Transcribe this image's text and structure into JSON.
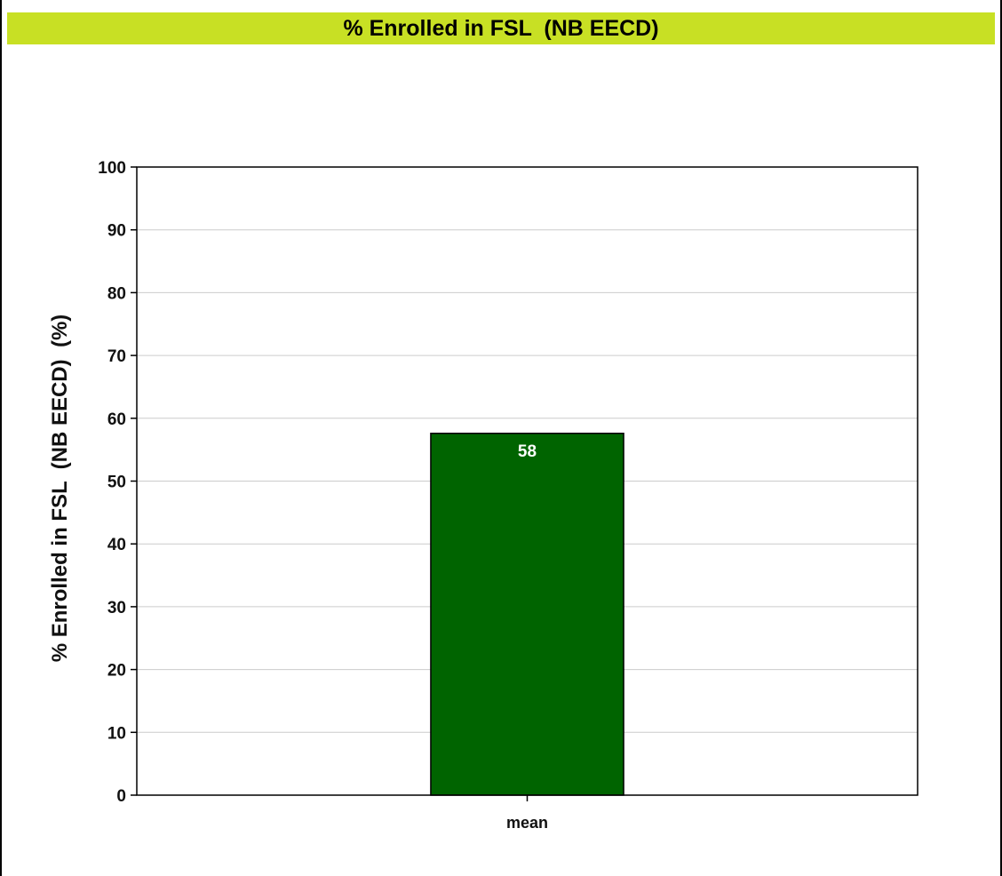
{
  "chart_data": {
    "type": "bar",
    "title": "% Enrolled in FSL  (NB EECD)",
    "ylabel": "% Enrolled in FSL  (NB EECD)  (%)",
    "xlabel": "",
    "categories": [
      "mean"
    ],
    "values": [
      57.6
    ],
    "data_labels": [
      "58"
    ],
    "ylim": [
      0,
      100
    ],
    "yticks": [
      0,
      10,
      20,
      30,
      40,
      50,
      60,
      70,
      80,
      90,
      100
    ],
    "grid": true,
    "legend": "none",
    "colors": {
      "title_bar": "#c8e024",
      "bar": "#006400",
      "grid": "#cccccc"
    }
  }
}
